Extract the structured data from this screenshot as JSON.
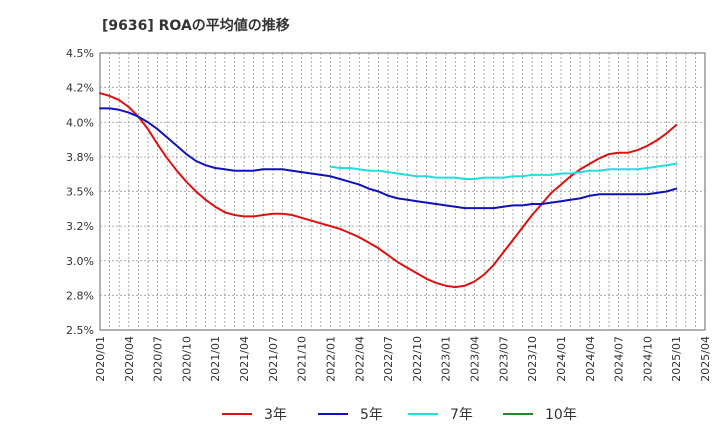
{
  "chart_data": {
    "type": "line",
    "title": "[9636]  ROAの平均値の推移",
    "xlabel": "",
    "ylabel": "",
    "ylim": [
      2.5,
      4.5
    ],
    "grid": true,
    "legend_position": "bottom",
    "x_ticks": [
      "2020/01",
      "2020/04",
      "2020/07",
      "2020/10",
      "2021/01",
      "2021/04",
      "2021/07",
      "2021/10",
      "2022/01",
      "2022/04",
      "2022/07",
      "2022/10",
      "2023/01",
      "2023/04",
      "2023/07",
      "2023/10",
      "2024/01",
      "2024/04",
      "2024/07",
      "2024/10",
      "2025/01",
      "2025/04"
    ],
    "y_ticks": [
      "2.5%",
      "2.8%",
      "3.0%",
      "3.2%",
      "3.5%",
      "3.8%",
      "4.0%",
      "4.2%",
      "4.5%"
    ],
    "y_tick_values": [
      2.5,
      2.75,
      3.0,
      3.25,
      3.5,
      3.75,
      4.0,
      4.25,
      4.5
    ],
    "series": [
      {
        "name": "3年",
        "color": "#dd1111",
        "points": [
          [
            "2020/01",
            4.21
          ],
          [
            "2020/02",
            4.19
          ],
          [
            "2020/03",
            4.16
          ],
          [
            "2020/04",
            4.11
          ],
          [
            "2020/05",
            4.04
          ],
          [
            "2020/06",
            3.95
          ],
          [
            "2020/07",
            3.84
          ],
          [
            "2020/08",
            3.74
          ],
          [
            "2020/09",
            3.65
          ],
          [
            "2020/10",
            3.57
          ],
          [
            "2020/11",
            3.5
          ],
          [
            "2020/12",
            3.44
          ],
          [
            "2021/01",
            3.39
          ],
          [
            "2021/02",
            3.35
          ],
          [
            "2021/03",
            3.33
          ],
          [
            "2021/04",
            3.32
          ],
          [
            "2021/05",
            3.32
          ],
          [
            "2021/06",
            3.33
          ],
          [
            "2021/07",
            3.34
          ],
          [
            "2021/08",
            3.34
          ],
          [
            "2021/09",
            3.33
          ],
          [
            "2021/10",
            3.31
          ],
          [
            "2021/11",
            3.29
          ],
          [
            "2021/12",
            3.27
          ],
          [
            "2022/01",
            3.25
          ],
          [
            "2022/02",
            3.23
          ],
          [
            "2022/03",
            3.2
          ],
          [
            "2022/04",
            3.17
          ],
          [
            "2022/05",
            3.13
          ],
          [
            "2022/06",
            3.09
          ],
          [
            "2022/07",
            3.04
          ],
          [
            "2022/08",
            2.99
          ],
          [
            "2022/09",
            2.95
          ],
          [
            "2022/10",
            2.91
          ],
          [
            "2022/11",
            2.87
          ],
          [
            "2022/12",
            2.84
          ],
          [
            "2023/01",
            2.82
          ],
          [
            "2023/02",
            2.81
          ],
          [
            "2023/03",
            2.82
          ],
          [
            "2023/04",
            2.85
          ],
          [
            "2023/05",
            2.9
          ],
          [
            "2023/06",
            2.97
          ],
          [
            "2023/07",
            3.06
          ],
          [
            "2023/08",
            3.15
          ],
          [
            "2023/09",
            3.24
          ],
          [
            "2023/10",
            3.33
          ],
          [
            "2023/11",
            3.41
          ],
          [
            "2023/12",
            3.49
          ],
          [
            "2024/01",
            3.55
          ],
          [
            "2024/02",
            3.61
          ],
          [
            "2024/03",
            3.66
          ],
          [
            "2024/04",
            3.7
          ],
          [
            "2024/05",
            3.74
          ],
          [
            "2024/06",
            3.77
          ],
          [
            "2024/07",
            3.78
          ],
          [
            "2024/08",
            3.78
          ],
          [
            "2024/09",
            3.8
          ],
          [
            "2024/10",
            3.83
          ],
          [
            "2024/11",
            3.87
          ],
          [
            "2024/12",
            3.92
          ],
          [
            "2025/01",
            3.98
          ]
        ]
      },
      {
        "name": "5年",
        "color": "#1111bb",
        "points": [
          [
            "2020/01",
            4.1
          ],
          [
            "2020/02",
            4.1
          ],
          [
            "2020/03",
            4.09
          ],
          [
            "2020/04",
            4.07
          ],
          [
            "2020/05",
            4.04
          ],
          [
            "2020/06",
            4.0
          ],
          [
            "2020/07",
            3.95
          ],
          [
            "2020/08",
            3.89
          ],
          [
            "2020/09",
            3.83
          ],
          [
            "2020/10",
            3.77
          ],
          [
            "2020/11",
            3.72
          ],
          [
            "2020/12",
            3.69
          ],
          [
            "2021/01",
            3.67
          ],
          [
            "2021/02",
            3.66
          ],
          [
            "2021/03",
            3.65
          ],
          [
            "2021/04",
            3.65
          ],
          [
            "2021/05",
            3.65
          ],
          [
            "2021/06",
            3.66
          ],
          [
            "2021/07",
            3.66
          ],
          [
            "2021/08",
            3.66
          ],
          [
            "2021/09",
            3.65
          ],
          [
            "2021/10",
            3.64
          ],
          [
            "2021/11",
            3.63
          ],
          [
            "2021/12",
            3.62
          ],
          [
            "2022/01",
            3.61
          ],
          [
            "2022/02",
            3.59
          ],
          [
            "2022/03",
            3.57
          ],
          [
            "2022/04",
            3.55
          ],
          [
            "2022/05",
            3.52
          ],
          [
            "2022/06",
            3.5
          ],
          [
            "2022/07",
            3.47
          ],
          [
            "2022/08",
            3.45
          ],
          [
            "2022/09",
            3.44
          ],
          [
            "2022/10",
            3.43
          ],
          [
            "2022/11",
            3.42
          ],
          [
            "2022/12",
            3.41
          ],
          [
            "2023/01",
            3.4
          ],
          [
            "2023/02",
            3.39
          ],
          [
            "2023/03",
            3.38
          ],
          [
            "2023/04",
            3.38
          ],
          [
            "2023/05",
            3.38
          ],
          [
            "2023/06",
            3.38
          ],
          [
            "2023/07",
            3.39
          ],
          [
            "2023/08",
            3.4
          ],
          [
            "2023/09",
            3.4
          ],
          [
            "2023/10",
            3.41
          ],
          [
            "2023/11",
            3.41
          ],
          [
            "2023/12",
            3.42
          ],
          [
            "2024/01",
            3.43
          ],
          [
            "2024/02",
            3.44
          ],
          [
            "2024/03",
            3.45
          ],
          [
            "2024/04",
            3.47
          ],
          [
            "2024/05",
            3.48
          ],
          [
            "2024/06",
            3.48
          ],
          [
            "2024/07",
            3.48
          ],
          [
            "2024/08",
            3.48
          ],
          [
            "2024/09",
            3.48
          ],
          [
            "2024/10",
            3.48
          ],
          [
            "2024/11",
            3.49
          ],
          [
            "2024/12",
            3.5
          ],
          [
            "2025/01",
            3.52
          ]
        ]
      },
      {
        "name": "7年",
        "color": "#22dddd",
        "points": [
          [
            "2022/01",
            3.68
          ],
          [
            "2022/02",
            3.67
          ],
          [
            "2022/03",
            3.67
          ],
          [
            "2022/04",
            3.66
          ],
          [
            "2022/05",
            3.65
          ],
          [
            "2022/06",
            3.65
          ],
          [
            "2022/07",
            3.64
          ],
          [
            "2022/08",
            3.63
          ],
          [
            "2022/09",
            3.62
          ],
          [
            "2022/10",
            3.61
          ],
          [
            "2022/11",
            3.61
          ],
          [
            "2022/12",
            3.6
          ],
          [
            "2023/01",
            3.6
          ],
          [
            "2023/02",
            3.6
          ],
          [
            "2023/03",
            3.59
          ],
          [
            "2023/04",
            3.59
          ],
          [
            "2023/05",
            3.6
          ],
          [
            "2023/06",
            3.6
          ],
          [
            "2023/07",
            3.6
          ],
          [
            "2023/08",
            3.61
          ],
          [
            "2023/09",
            3.61
          ],
          [
            "2023/10",
            3.62
          ],
          [
            "2023/11",
            3.62
          ],
          [
            "2023/12",
            3.62
          ],
          [
            "2024/01",
            3.63
          ],
          [
            "2024/02",
            3.63
          ],
          [
            "2024/03",
            3.64
          ],
          [
            "2024/04",
            3.65
          ],
          [
            "2024/05",
            3.65
          ],
          [
            "2024/06",
            3.66
          ],
          [
            "2024/07",
            3.66
          ],
          [
            "2024/08",
            3.66
          ],
          [
            "2024/09",
            3.66
          ],
          [
            "2024/10",
            3.67
          ],
          [
            "2024/11",
            3.68
          ],
          [
            "2024/12",
            3.69
          ],
          [
            "2025/01",
            3.7
          ]
        ]
      },
      {
        "name": "10年",
        "color": "#228822",
        "points": []
      }
    ]
  }
}
